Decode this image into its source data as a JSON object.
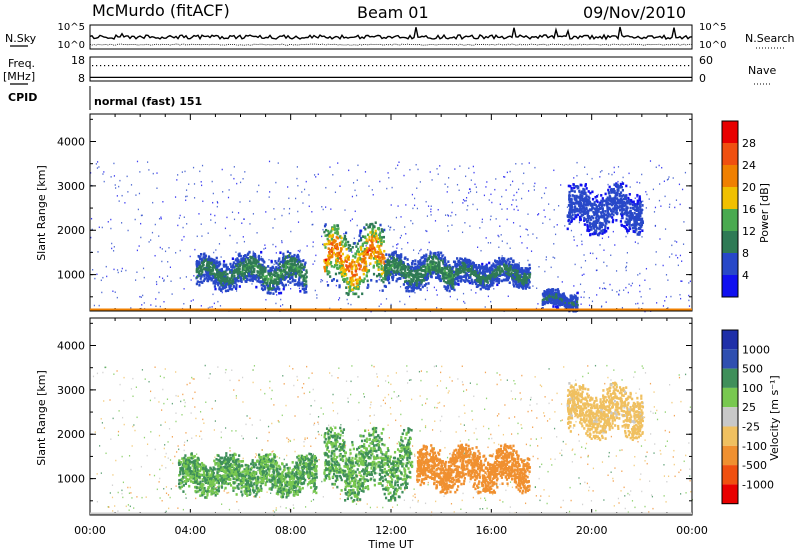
{
  "header": {
    "station": "McMurdo (fitACF)",
    "beam": "Beam 01",
    "date": "09/Nov/2010"
  },
  "strip_labels": {
    "nsky": "N.Sky",
    "freq_top": "Freq.",
    "freq_unit": "[MHz]",
    "cpid": "CPID",
    "nsearch": "N.Search",
    "nave": "Nave",
    "cpid_value": "normal (fast) 151"
  },
  "colors": {
    "power": [
      "#1010f0",
      "#2848c8",
      "#2f7a55",
      "#4aaa50",
      "#f0c000",
      "#f08000",
      "#f05010",
      "#e80000"
    ],
    "velocity": [
      "#e80000",
      "#f05010",
      "#f09030",
      "#f0c060",
      "#c8c8c8",
      "#78c850",
      "#3f8f5a",
      "#2f4fb0",
      "#1f2fa8"
    ]
  },
  "chart_data": [
    {
      "type": "line",
      "name": "noise-strip",
      "left_axis": {
        "label": "N.Sky",
        "ticks": [
          "10^5",
          "10^0"
        ]
      },
      "right_axis": {
        "label": "N.Search",
        "ticks": [
          "10^5",
          "10^0"
        ]
      }
    },
    {
      "type": "scatter",
      "name": "freq-strip",
      "left_axis": {
        "label": "Freq. [MHz]",
        "ticks": [
          18,
          8
        ],
        "range": [
          8,
          18
        ]
      },
      "right_axis": {
        "label": "Nave",
        "ticks": [
          60,
          0
        ],
        "range": [
          0,
          60
        ]
      },
      "freq_mhz_approx": 9.5,
      "nave_approx": 40
    },
    {
      "type": "heatmap",
      "name": "power-panel",
      "ylabel": "Slant Range [km]",
      "ylim": [
        180,
        4620
      ],
      "yticks": [
        1000,
        2000,
        3000,
        4000
      ],
      "xlim_hours": [
        0,
        24
      ],
      "colorbar": {
        "label": "Power [dB]",
        "ticks": [
          4,
          8,
          12,
          16,
          20,
          24,
          28
        ],
        "range": [
          0,
          32
        ]
      },
      "echo_regions": [
        {
          "t_start": 4.2,
          "t_end": 6.0,
          "r_min": 650,
          "r_max": 1500,
          "peak_db": 12
        },
        {
          "t_start": 6.0,
          "t_end": 8.6,
          "r_min": 600,
          "r_max": 1550,
          "peak_db": 14
        },
        {
          "t_start": 9.3,
          "t_end": 11.7,
          "r_min": 500,
          "r_max": 2200,
          "peak_db": 30
        },
        {
          "t_start": 11.7,
          "t_end": 14.5,
          "r_min": 650,
          "r_max": 1550,
          "peak_db": 14
        },
        {
          "t_start": 14.5,
          "t_end": 17.5,
          "r_min": 700,
          "r_max": 1400,
          "peak_db": 12
        },
        {
          "t_start": 18.0,
          "t_end": 19.4,
          "r_min": 200,
          "r_max": 700,
          "peak_db": 10
        },
        {
          "t_start": 19.0,
          "t_end": 22.0,
          "r_min": 1900,
          "r_max": 3100,
          "peak_db": 6
        }
      ]
    },
    {
      "type": "heatmap",
      "name": "velocity-panel",
      "ylabel": "Slant Range [km]",
      "xlabel": "Time UT",
      "ylim": [
        180,
        4620
      ],
      "yticks": [
        1000,
        2000,
        3000,
        4000
      ],
      "xlim_hours": [
        0,
        24
      ],
      "xticks": [
        "00:00",
        "04:00",
        "08:00",
        "12:00",
        "16:00",
        "20:00",
        "00:00"
      ],
      "colorbar": {
        "label": "Velocity [m s⁻¹]",
        "ticks": [
          1000,
          500,
          100,
          25,
          -25,
          -100,
          -500,
          -1000
        ]
      },
      "echo_regions": [
        {
          "t_start": 3.5,
          "t_end": 9.0,
          "r_min": 600,
          "r_max": 1600,
          "velocity": 100
        },
        {
          "t_start": 9.3,
          "t_end": 12.8,
          "r_min": 500,
          "r_max": 2200,
          "velocity": 100
        },
        {
          "t_start": 13.0,
          "t_end": 17.5,
          "r_min": 700,
          "r_max": 1800,
          "velocity": -300
        },
        {
          "t_start": 19.0,
          "t_end": 22.0,
          "r_min": 1900,
          "r_max": 3200,
          "velocity": -50
        }
      ]
    }
  ]
}
